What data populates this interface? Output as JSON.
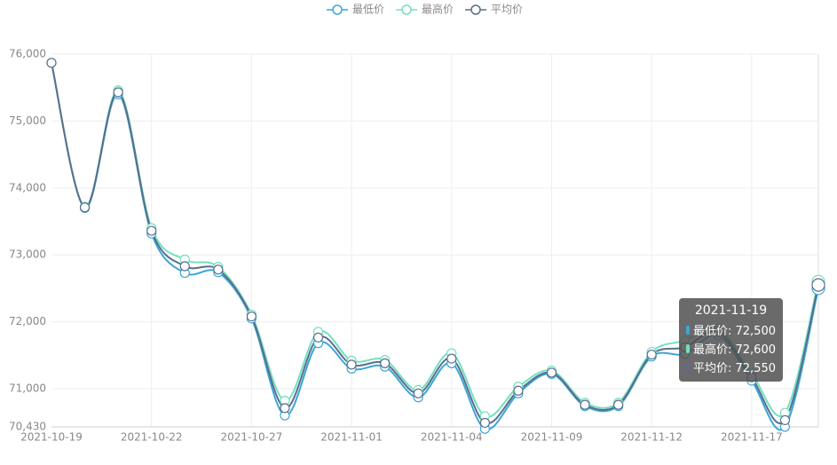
{
  "chart_data": {
    "type": "line",
    "categories": [
      "2021-10-19",
      null,
      null,
      "2021-10-22",
      null,
      null,
      "2021-10-27",
      null,
      null,
      "2021-11-01",
      null,
      null,
      "2021-11-04",
      null,
      null,
      "2021-11-09",
      null,
      null,
      "2021-11-12",
      null,
      null,
      "2021-11-17",
      null,
      "2021-11-19"
    ],
    "series": [
      {
        "name": "最低价",
        "color": "#3ba6d8",
        "values": [
          75870,
          73700,
          75400,
          73320,
          72730,
          72740,
          72050,
          70600,
          71680,
          71300,
          71330,
          70870,
          71380,
          70400,
          70930,
          71220,
          70740,
          70740,
          71480,
          71520,
          71800,
          71120,
          70430,
          72500
        ]
      },
      {
        "name": "最高价",
        "color": "#72e0bf",
        "values": [
          75870,
          73720,
          75460,
          73400,
          72930,
          72820,
          72110,
          70820,
          71850,
          71420,
          71430,
          70980,
          71530,
          70590,
          71030,
          71270,
          70790,
          70790,
          71550,
          71720,
          71900,
          71230,
          70640,
          72600
        ]
      },
      {
        "name": "平均价",
        "color": "#5b6e8c",
        "values": [
          75870,
          73710,
          75430,
          73360,
          72830,
          72780,
          72080,
          70710,
          71765,
          71360,
          71380,
          70930,
          71450,
          70490,
          70970,
          71240,
          70760,
          70760,
          71510,
          71620,
          71850,
          71170,
          70530,
          72550
        ]
      }
    ],
    "ylim": [
      70430,
      76000
    ],
    "yticks": [
      {
        "value": 70430,
        "label": "70,430"
      },
      {
        "value": 71000,
        "label": "71,000"
      },
      {
        "value": 72000,
        "label": "72,000"
      },
      {
        "value": 73000,
        "label": "73,000"
      },
      {
        "value": 74000,
        "label": "74,000"
      },
      {
        "value": 75000,
        "label": "75,000"
      },
      {
        "value": 76000,
        "label": "76,000"
      }
    ],
    "grid": true,
    "legend": "top",
    "tooltip": {
      "index": 23,
      "lines": [
        "最低价: 72,500",
        "最高价: 72,600",
        "平均价: 72,550"
      ]
    }
  }
}
